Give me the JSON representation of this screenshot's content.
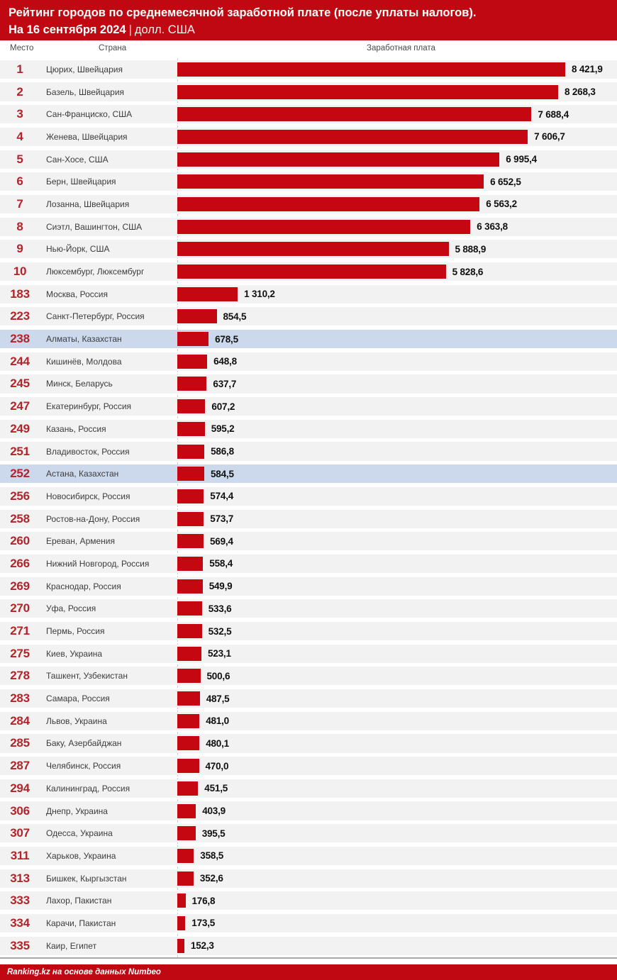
{
  "header": {
    "title_line1": "Рейтинг городов по среднемесячной заработной плате (после уплаты налогов).",
    "title_line2_bold": "На 16 сентября 2024",
    "title_line2_sep": "|",
    "title_line2_unit": "долл. США"
  },
  "columns": {
    "rank": "Место",
    "city": "Страна",
    "salary": "Заработная плата"
  },
  "footer": {
    "source": "Ranking.kz на основе данных Numbeo"
  },
  "colors": {
    "banner_red": "#c00812",
    "bar_red": "#c40710",
    "rank_red": "#b3232a",
    "row_bg": "#f2f2f2",
    "highlight_bg": "#ccd9ec",
    "dash_line": "#c9c9c9",
    "bottom_rule": "#a8a8a8"
  },
  "chart_data": {
    "type": "bar",
    "orientation": "horizontal",
    "title": "Рейтинг городов по среднемесячной заработной плате (после уплаты налогов). На 16 сентября 2024",
    "unit": "долл. США",
    "value_axis_max": 8421.9,
    "legend": "none",
    "highlight_note": "rows for Kazakhstan cities (238 Алматы, 252 Астана) have light-blue background",
    "rows": [
      {
        "rank": "1",
        "city": "Цюрих, Швейцария",
        "value": 8421.9,
        "label": "8 421,9",
        "highlight": false
      },
      {
        "rank": "2",
        "city": "Базель, Швейцария",
        "value": 8268.3,
        "label": "8 268,3",
        "highlight": false
      },
      {
        "rank": "3",
        "city": "Сан-Франциско, США",
        "value": 7688.4,
        "label": "7 688,4",
        "highlight": false
      },
      {
        "rank": "4",
        "city": "Женева, Швейцария",
        "value": 7606.7,
        "label": "7 606,7",
        "highlight": false
      },
      {
        "rank": "5",
        "city": "Сан-Хосе, США",
        "value": 6995.4,
        "label": "6 995,4",
        "highlight": false
      },
      {
        "rank": "6",
        "city": "Берн, Швейцария",
        "value": 6652.5,
        "label": "6 652,5",
        "highlight": false
      },
      {
        "rank": "7",
        "city": "Лозанна, Швейцария",
        "value": 6563.2,
        "label": "6 563,2",
        "highlight": false
      },
      {
        "rank": "8",
        "city": "Сиэтл, Вашингтон, США",
        "value": 6363.8,
        "label": "6 363,8",
        "highlight": false
      },
      {
        "rank": "9",
        "city": "Нью-Йорк, США",
        "value": 5888.9,
        "label": "5 888,9",
        "highlight": false
      },
      {
        "rank": "10",
        "city": "Люксембург, Люксембург",
        "value": 5828.6,
        "label": "5 828,6",
        "highlight": false
      },
      {
        "rank": "183",
        "city": "Москва, Россия",
        "value": 1310.2,
        "label": "1 310,2",
        "highlight": false
      },
      {
        "rank": "223",
        "city": "Санкт-Петербург, Россия",
        "value": 854.5,
        "label": "854,5",
        "highlight": false
      },
      {
        "rank": "238",
        "city": "Алматы, Казахстан",
        "value": 678.5,
        "label": "678,5",
        "highlight": true
      },
      {
        "rank": "244",
        "city": "Кишинёв, Молдова",
        "value": 648.8,
        "label": "648,8",
        "highlight": false
      },
      {
        "rank": "245",
        "city": "Минск, Беларусь",
        "value": 637.7,
        "label": "637,7",
        "highlight": false
      },
      {
        "rank": "247",
        "city": "Екатеринбург, Россия",
        "value": 607.2,
        "label": "607,2",
        "highlight": false
      },
      {
        "rank": "249",
        "city": "Казань, Россия",
        "value": 595.2,
        "label": "595,2",
        "highlight": false
      },
      {
        "rank": "251",
        "city": "Владивосток, Россия",
        "value": 586.8,
        "label": "586,8",
        "highlight": false
      },
      {
        "rank": "252",
        "city": "Астана, Казахстан",
        "value": 584.5,
        "label": "584,5",
        "highlight": true
      },
      {
        "rank": "256",
        "city": "Новосибирск, Россия",
        "value": 574.4,
        "label": "574,4",
        "highlight": false
      },
      {
        "rank": "258",
        "city": "Ростов-на-Дону, Россия",
        "value": 573.7,
        "label": "573,7",
        "highlight": false
      },
      {
        "rank": "260",
        "city": "Ереван, Армения",
        "value": 569.4,
        "label": "569,4",
        "highlight": false
      },
      {
        "rank": "266",
        "city": "Нижний Новгород, Россия",
        "value": 558.4,
        "label": "558,4",
        "highlight": false
      },
      {
        "rank": "269",
        "city": "Краснодар, Россия",
        "value": 549.9,
        "label": "549,9",
        "highlight": false
      },
      {
        "rank": "270",
        "city": "Уфа, Россия",
        "value": 533.6,
        "label": "533,6",
        "highlight": false
      },
      {
        "rank": "271",
        "city": "Пермь, Россия",
        "value": 532.5,
        "label": "532,5",
        "highlight": false
      },
      {
        "rank": "275",
        "city": "Киев, Украина",
        "value": 523.1,
        "label": "523,1",
        "highlight": false
      },
      {
        "rank": "278",
        "city": "Ташкент, Узбекистан",
        "value": 500.6,
        "label": "500,6",
        "highlight": false
      },
      {
        "rank": "283",
        "city": "Самара, Россия",
        "value": 487.5,
        "label": "487,5",
        "highlight": false
      },
      {
        "rank": "284",
        "city": "Львов, Украина",
        "value": 481.0,
        "label": "481,0",
        "highlight": false
      },
      {
        "rank": "285",
        "city": "Баку, Азербайджан",
        "value": 480.1,
        "label": "480,1",
        "highlight": false
      },
      {
        "rank": "287",
        "city": "Челябинск, Россия",
        "value": 470.0,
        "label": "470,0",
        "highlight": false
      },
      {
        "rank": "294",
        "city": "Калининград, Россия",
        "value": 451.5,
        "label": "451,5",
        "highlight": false
      },
      {
        "rank": "306",
        "city": "Днепр, Украина",
        "value": 403.9,
        "label": "403,9",
        "highlight": false
      },
      {
        "rank": "307",
        "city": "Одесса, Украина",
        "value": 395.5,
        "label": "395,5",
        "highlight": false
      },
      {
        "rank": "311",
        "city": "Харьков, Украина",
        "value": 358.5,
        "label": "358,5",
        "highlight": false
      },
      {
        "rank": "313",
        "city": "Бишкек, Кыргызстан",
        "value": 352.6,
        "label": "352,6",
        "highlight": false
      },
      {
        "rank": "333",
        "city": "Лахор, Пакистан",
        "value": 176.8,
        "label": "176,8",
        "highlight": false
      },
      {
        "rank": "334",
        "city": "Карачи, Пакистан",
        "value": 173.5,
        "label": "173,5",
        "highlight": false
      },
      {
        "rank": "335",
        "city": "Каир, Египет",
        "value": 152.3,
        "label": "152,3",
        "highlight": false
      }
    ]
  }
}
